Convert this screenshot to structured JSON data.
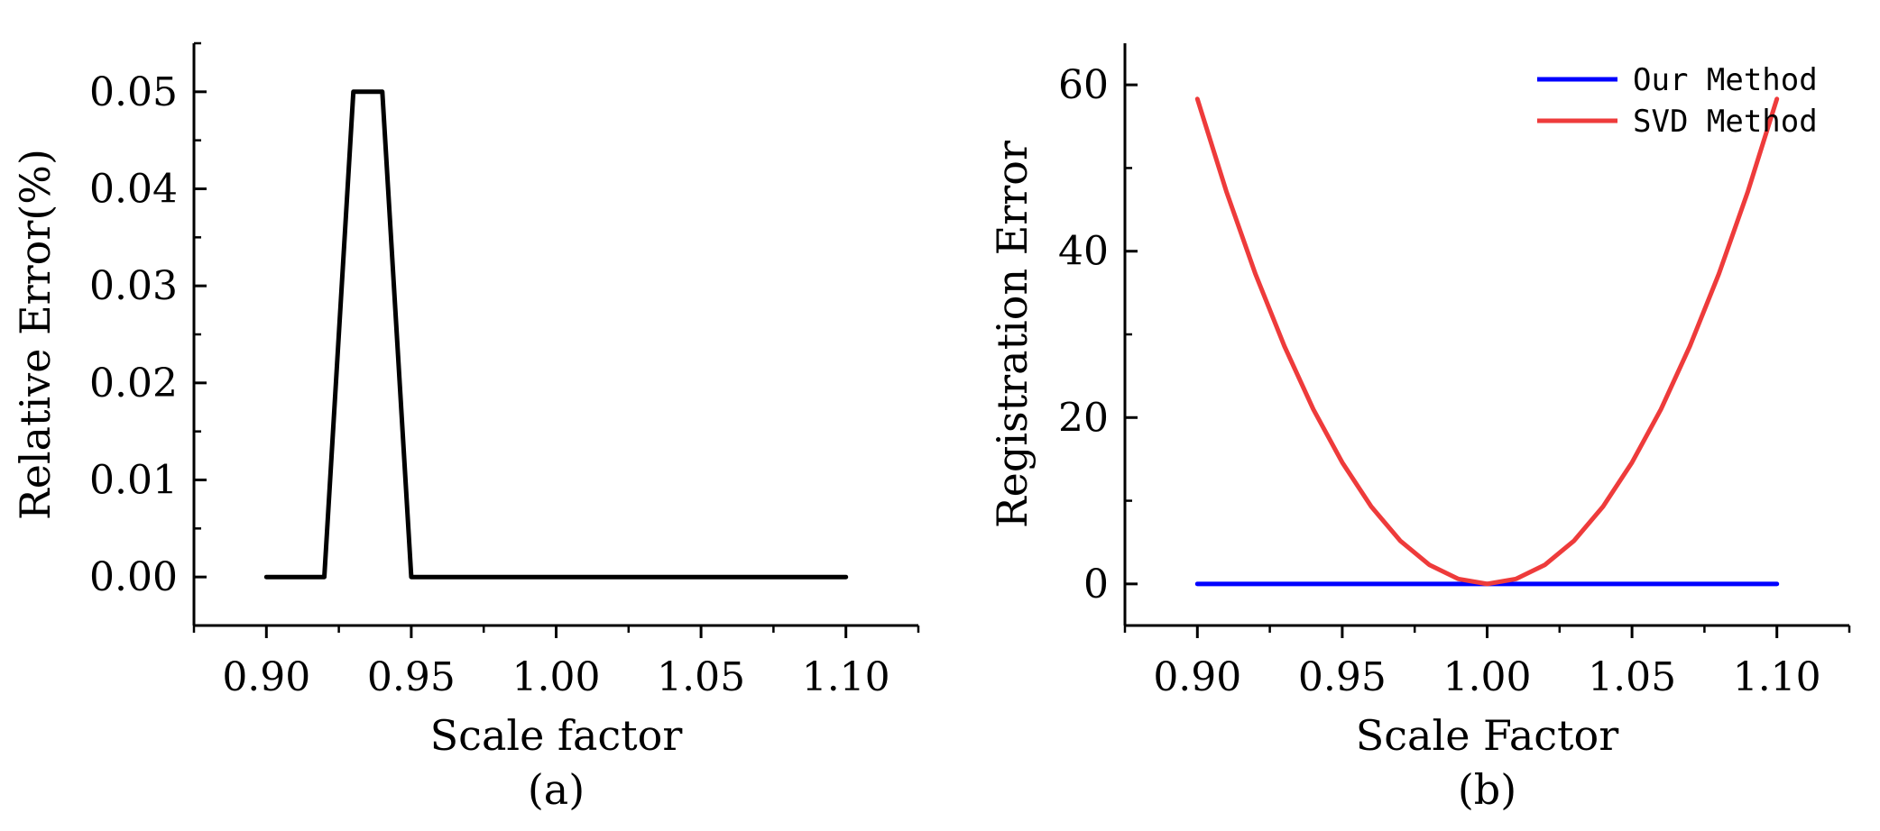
{
  "chart_data": [
    {
      "type": "line",
      "panel_label": "(a)",
      "xlabel": "Scale factor",
      "ylabel": "Relative Error(%)",
      "xlim": [
        0.875,
        1.125
      ],
      "ylim": [
        -0.005,
        0.055
      ],
      "xticks": [
        0.9,
        0.95,
        1.0,
        1.05,
        1.1
      ],
      "xtick_labels": [
        "0.90",
        "0.95",
        "1.00",
        "1.05",
        "1.10"
      ],
      "yticks": [
        0.0,
        0.01,
        0.02,
        0.03,
        0.04,
        0.05
      ],
      "ytick_labels": [
        "0.00",
        "0.01",
        "0.02",
        "0.03",
        "0.04",
        "0.05"
      ],
      "grid": false,
      "series": [
        {
          "name": "Relative Error",
          "color": "#000000",
          "x": [
            0.9,
            0.92,
            0.93,
            0.94,
            0.95,
            0.96,
            0.97,
            0.98,
            0.99,
            1.0,
            1.01,
            1.02,
            1.03,
            1.04,
            1.05,
            1.06,
            1.07,
            1.08,
            1.09,
            1.1
          ],
          "y": [
            0.0,
            0.0,
            0.05,
            0.05,
            0.0,
            0.0,
            0.0,
            0.0,
            0.0,
            0.0,
            0.0,
            0.0,
            0.0,
            0.0,
            0.0,
            0.0,
            0.0,
            0.0,
            0.0,
            0.0
          ]
        }
      ]
    },
    {
      "type": "line",
      "panel_label": "(b)",
      "xlabel": "Scale Factor",
      "ylabel": "Registration Error",
      "xlim": [
        0.875,
        1.125
      ],
      "ylim": [
        -5,
        65
      ],
      "xticks": [
        0.9,
        0.95,
        1.0,
        1.05,
        1.1
      ],
      "xtick_labels": [
        "0.90",
        "0.95",
        "1.00",
        "1.05",
        "1.10"
      ],
      "yticks": [
        0,
        20,
        40,
        60
      ],
      "ytick_labels": [
        "0",
        "20",
        "40",
        "60"
      ],
      "grid": false,
      "legend_position": "top-right",
      "series": [
        {
          "name": "Our Method",
          "color": "#0000ff",
          "x": [
            0.9,
            0.91,
            0.92,
            0.93,
            0.94,
            0.95,
            0.96,
            0.97,
            0.98,
            0.99,
            1.0,
            1.01,
            1.02,
            1.03,
            1.04,
            1.05,
            1.06,
            1.07,
            1.08,
            1.09,
            1.1
          ],
          "y": [
            0,
            0,
            0,
            0,
            0,
            0,
            0,
            0,
            0,
            0,
            0,
            0,
            0,
            0,
            0,
            0,
            0,
            0,
            0,
            0,
            0
          ]
        },
        {
          "name": "SVD Method",
          "color": "#ee3b3b",
          "x": [
            0.9,
            0.91,
            0.92,
            0.93,
            0.94,
            0.95,
            0.96,
            0.97,
            0.98,
            0.99,
            1.0,
            1.01,
            1.02,
            1.03,
            1.04,
            1.05,
            1.06,
            1.07,
            1.08,
            1.09,
            1.1
          ],
          "y": [
            58.3,
            47.2,
            37.3,
            28.6,
            21.0,
            14.6,
            9.3,
            5.2,
            2.3,
            0.6,
            0.0,
            0.6,
            2.3,
            5.2,
            9.3,
            14.6,
            21.0,
            28.6,
            37.3,
            47.2,
            58.3
          ]
        }
      ]
    }
  ]
}
